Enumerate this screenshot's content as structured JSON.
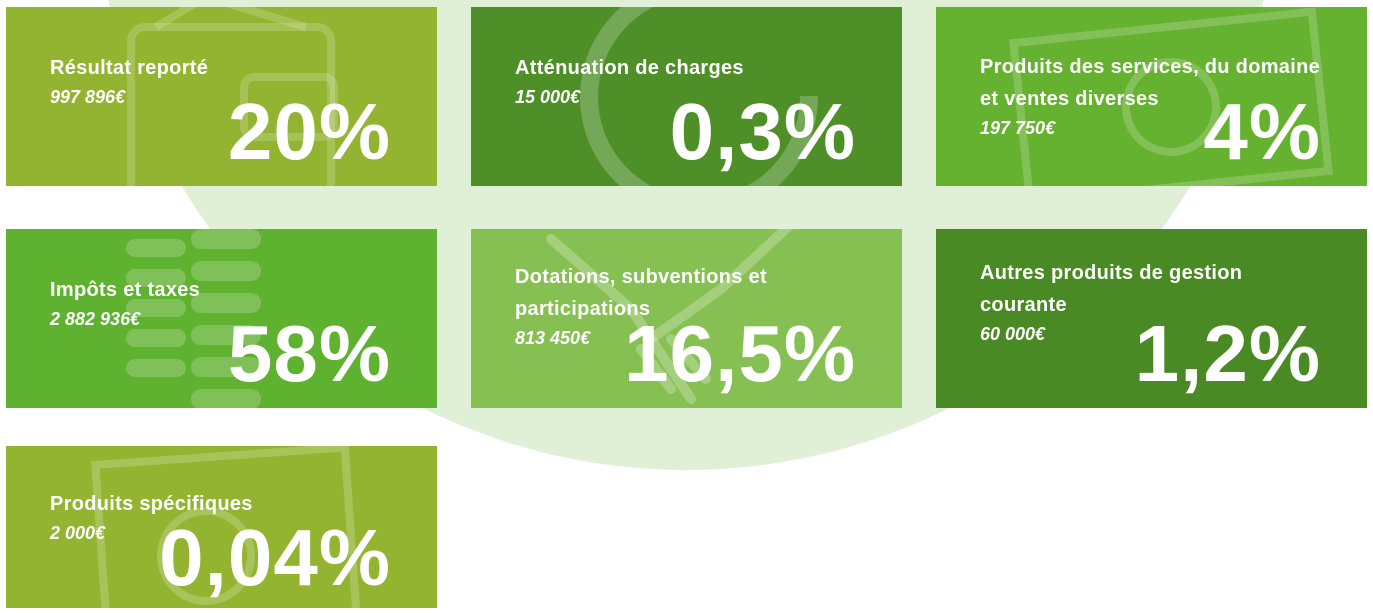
{
  "cards": [
    {
      "title": "Résultat reporté",
      "amount": "997 896€",
      "percent": "20%"
    },
    {
      "title": "Atténuation de charges",
      "amount": "15 000€",
      "percent": "0,3%"
    },
    {
      "title": "Produits des services, du domaine et ventes diverses",
      "amount": "197 750€",
      "percent": "4%"
    },
    {
      "title": "Impôts et taxes",
      "amount": "2 882 936€",
      "percent": "58%"
    },
    {
      "title": "Dotations, subventions et participations",
      "amount": "813 450€",
      "percent": "16,5%"
    },
    {
      "title": "Autres produits de gestion courante",
      "amount": "60 000€",
      "percent": "1,2%"
    },
    {
      "title": "Produits spécifiques",
      "amount": "2 000€",
      "percent": "0,04%"
    }
  ]
}
